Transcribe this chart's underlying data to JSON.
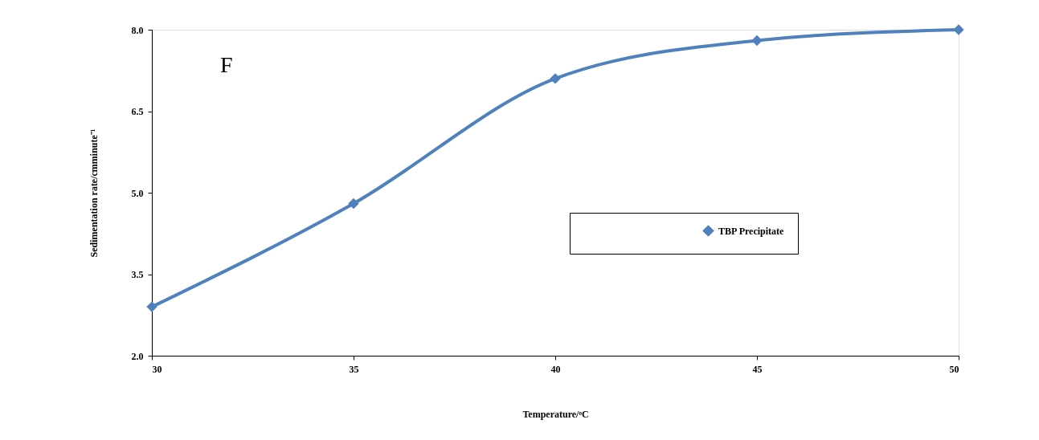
{
  "chart_data": {
    "type": "line",
    "xlabel": "Temperature/ᵒC",
    "ylabel": "Sedimentation rate/cmminute⁻¹",
    "annotations": [
      "F"
    ],
    "x": [
      30,
      35,
      40,
      45,
      50
    ],
    "series": [
      {
        "name": "TBP Precipitate",
        "color": "#4f81bd",
        "values": [
          2.9,
          4.8,
          7.1,
          7.8,
          8.0
        ]
      }
    ],
    "xlim": [
      30,
      50
    ],
    "xticks": [
      30,
      35,
      40,
      45,
      50
    ],
    "ylim": [
      2.0,
      8.0
    ],
    "yticks": [
      {
        "value": 2,
        "label": "2.0"
      },
      {
        "value": 3.5,
        "label": "3.5"
      },
      {
        "value": 5,
        "label": "5.0"
      },
      {
        "value": 6.5,
        "label": "6.5"
      },
      {
        "value": 8,
        "label": "8.0"
      }
    ],
    "grid": false,
    "legend": "right",
    "marker": "diamond",
    "line_style": "solid"
  }
}
